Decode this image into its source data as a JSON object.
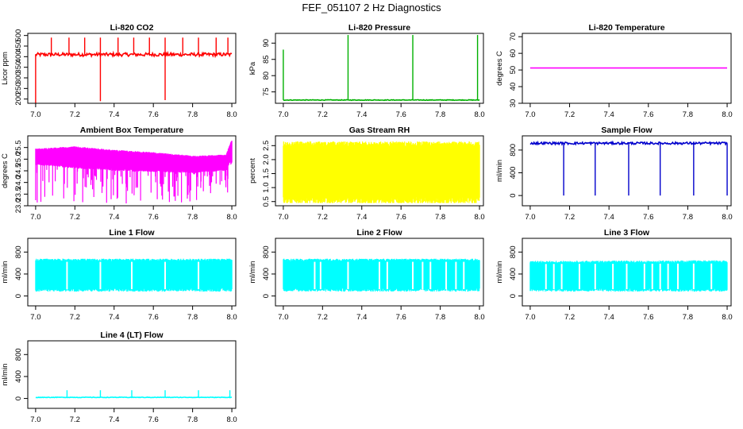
{
  "figure": {
    "title": "FEF_051107  2 Hz Diagnostics"
  },
  "chart_data": [
    {
      "type": "line",
      "title": "Li-820 CO2",
      "xlabel": "",
      "ylabel": "Licor ppm",
      "xlim": [
        6.96,
        8.02
      ],
      "ylim": [
        180,
        510
      ],
      "xticks": [
        7.0,
        7.2,
        7.4,
        7.6,
        7.8,
        8.0
      ],
      "yticks": [
        200,
        250,
        300,
        350,
        400,
        450,
        500
      ],
      "color": "#ff0000",
      "grid": false,
      "baseline": 410,
      "noise": 8,
      "spikes_up": [
        7.08,
        7.17,
        7.25,
        7.33,
        7.42,
        7.5,
        7.58,
        7.66,
        7.75,
        7.83,
        7.92,
        7.98
      ],
      "spike_up_level": 490,
      "spikes_down": [
        [
          7.0,
          180
        ],
        [
          7.33,
          190
        ],
        [
          7.66,
          195
        ]
      ]
    },
    {
      "type": "line",
      "title": "Li-820 Pressure",
      "xlabel": "",
      "ylabel": "kPa",
      "xlim": [
        6.96,
        8.02
      ],
      "ylim": [
        71.5,
        93
      ],
      "xticks": [
        7.0,
        7.2,
        7.4,
        7.6,
        7.8,
        8.0
      ],
      "yticks": [
        75,
        80,
        85,
        90
      ],
      "color": "#00b000",
      "grid": false,
      "baseline": 72.5,
      "noise": 0.1,
      "spikes_up": [
        7.33,
        7.66,
        7.99
      ],
      "spike_up_level": 92.5,
      "start_spike": 88
    },
    {
      "type": "line",
      "title": "Li-820 Temperature",
      "xlabel": "",
      "ylabel": "degrees C",
      "xlim": [
        6.96,
        8.02
      ],
      "ylim": [
        30,
        72
      ],
      "xticks": [
        7.0,
        7.2,
        7.4,
        7.6,
        7.8,
        8.0
      ],
      "yticks": [
        30,
        40,
        50,
        60,
        70
      ],
      "color": "#ff00ff",
      "grid": false,
      "baseline": 51.2,
      "noise": 0
    },
    {
      "type": "area",
      "title": "Ambient Box Temperature",
      "xlabel": "",
      "ylabel": "degrees C",
      "xlim": [
        6.96,
        8.02
      ],
      "ylim": [
        23.0,
        26.0
      ],
      "xticks": [
        7.0,
        7.2,
        7.4,
        7.6,
        7.8,
        8.0
      ],
      "yticks": [
        23.0,
        23.5,
        24.0,
        24.5,
        25.0,
        25.5
      ],
      "color": "#ff00ff",
      "grid": false,
      "upper": [
        [
          7.0,
          25.45
        ],
        [
          7.2,
          25.55
        ],
        [
          7.4,
          25.4
        ],
        [
          7.6,
          25.3
        ],
        [
          7.8,
          25.15
        ],
        [
          7.97,
          25.2
        ],
        [
          8.0,
          25.85
        ]
      ],
      "lower": [
        [
          7.0,
          24.75
        ],
        [
          7.2,
          24.6
        ],
        [
          7.4,
          24.5
        ],
        [
          7.6,
          24.45
        ],
        [
          7.8,
          24.4
        ],
        [
          7.97,
          24.5
        ],
        [
          8.0,
          25.0
        ]
      ],
      "dip_min": 23.1
    },
    {
      "type": "area",
      "title": "Gas Stream RH",
      "xlabel": "",
      "ylabel": "percent",
      "xlim": [
        6.96,
        8.02
      ],
      "ylim": [
        0.35,
        2.85
      ],
      "xticks": [
        7.0,
        7.2,
        7.4,
        7.6,
        7.8,
        8.0
      ],
      "yticks": [
        0.5,
        1.0,
        1.5,
        2.0,
        2.5
      ],
      "color": "#ffff00",
      "grid": false,
      "upper": [
        [
          7.0,
          2.65
        ],
        [
          8.0,
          2.65
        ]
      ],
      "lower": [
        [
          7.0,
          0.45
        ],
        [
          8.0,
          0.45
        ]
      ],
      "dip_min": 0.45
    },
    {
      "type": "line",
      "title": "Sample Flow",
      "xlabel": "",
      "ylabel": "ml/min",
      "xlim": [
        6.96,
        8.02
      ],
      "ylim": [
        -180,
        1050
      ],
      "xticks": [
        7.0,
        7.2,
        7.4,
        7.6,
        7.8,
        8.0
      ],
      "yticks": [
        0,
        400,
        800
      ],
      "color": "#0000cc",
      "grid": false,
      "baseline": 920,
      "noise": 20,
      "spikes_down": [
        [
          7.17,
          0
        ],
        [
          7.33,
          0
        ],
        [
          7.5,
          0
        ],
        [
          7.66,
          0
        ],
        [
          7.83,
          0
        ],
        [
          8.0,
          0
        ]
      ]
    },
    {
      "type": "area",
      "title": "Line 1 Flow",
      "xlabel": "",
      "ylabel": "ml/min",
      "xlim": [
        6.96,
        8.02
      ],
      "ylim": [
        -180,
        1050
      ],
      "xticks": [
        7.0,
        7.2,
        7.4,
        7.6,
        7.8,
        8.0
      ],
      "yticks": [
        0,
        400,
        800
      ],
      "color": "#00ffff",
      "grid": false,
      "upper": [
        [
          7.0,
          680
        ],
        [
          8.0,
          680
        ]
      ],
      "lower": [
        [
          7.0,
          80
        ],
        [
          8.0,
          80
        ]
      ],
      "gaps": [
        7.16,
        7.33,
        7.49,
        7.66,
        7.83
      ]
    },
    {
      "type": "area",
      "title": "Line 2 Flow",
      "xlabel": "",
      "ylabel": "ml/min",
      "xlim": [
        6.96,
        8.02
      ],
      "ylim": [
        -180,
        1050
      ],
      "xticks": [
        7.0,
        7.2,
        7.4,
        7.6,
        7.8,
        8.0
      ],
      "yticks": [
        0,
        400,
        800
      ],
      "color": "#00ffff",
      "grid": false,
      "upper": [
        [
          7.0,
          680
        ],
        [
          8.0,
          680
        ]
      ],
      "lower": [
        [
          7.0,
          80
        ],
        [
          8.0,
          80
        ]
      ],
      "gaps": [
        7.16,
        7.19,
        7.33,
        7.49,
        7.53,
        7.66,
        7.71,
        7.75,
        7.83,
        7.88,
        7.92
      ]
    },
    {
      "type": "area",
      "title": "Line 3 Flow",
      "xlabel": "",
      "ylabel": "ml/min",
      "xlim": [
        6.96,
        8.02
      ],
      "ylim": [
        -180,
        1050
      ],
      "xticks": [
        7.0,
        7.2,
        7.4,
        7.6,
        7.8,
        8.0
      ],
      "yticks": [
        0,
        400,
        800
      ],
      "color": "#00ffff",
      "grid": false,
      "upper": [
        [
          7.0,
          640
        ],
        [
          8.0,
          650
        ]
      ],
      "lower": [
        [
          7.0,
          80
        ],
        [
          8.0,
          80
        ]
      ],
      "gaps": [
        7.08,
        7.12,
        7.16,
        7.25,
        7.33,
        7.42,
        7.49,
        7.58,
        7.62,
        7.66,
        7.7,
        7.75,
        7.83,
        7.92
      ]
    },
    {
      "type": "line",
      "title": "Line 4 (LT) Flow",
      "xlabel": "",
      "ylabel": "ml/min",
      "xlim": [
        6.96,
        8.02
      ],
      "ylim": [
        -180,
        1050
      ],
      "xticks": [
        7.0,
        7.2,
        7.4,
        7.6,
        7.8,
        8.0
      ],
      "yticks": [
        0,
        400,
        800
      ],
      "color": "#00ffff",
      "grid": false,
      "baseline": 20,
      "noise": 5,
      "spikes_up": [
        7.16,
        7.33,
        7.49,
        7.66,
        7.83,
        7.99
      ],
      "spike_up_level": 150
    }
  ]
}
